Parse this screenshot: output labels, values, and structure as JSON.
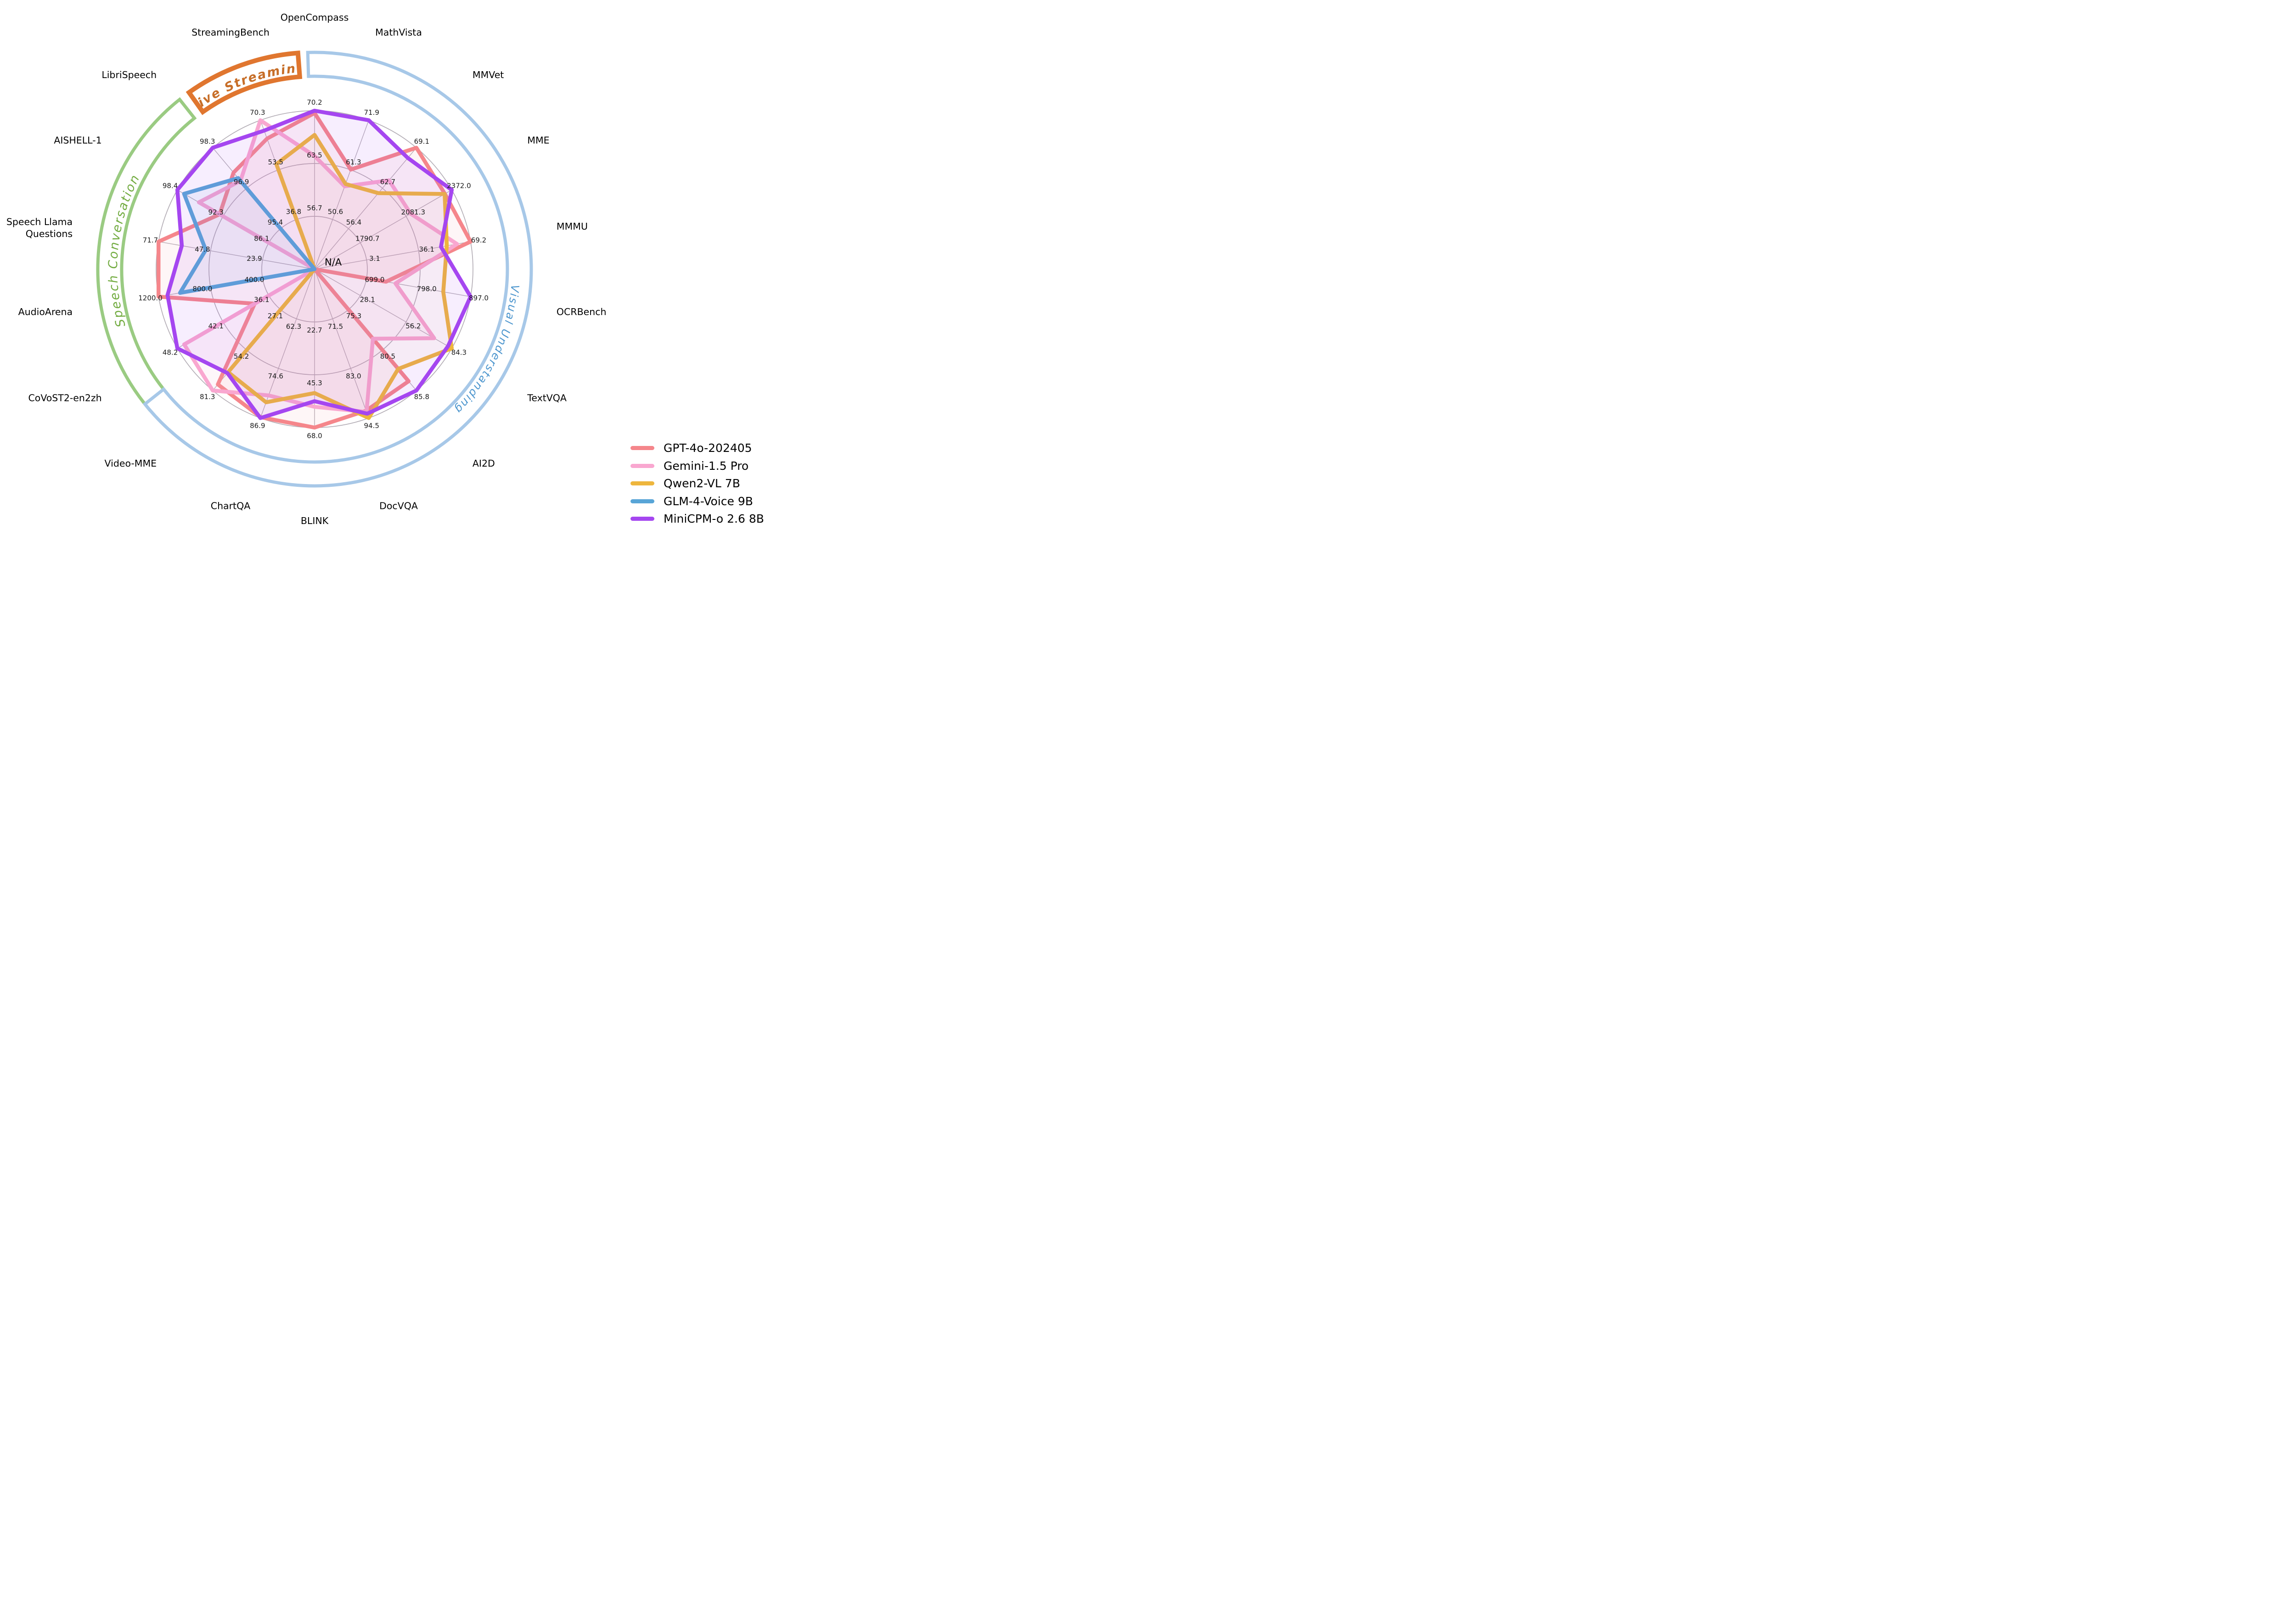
{
  "chart_data": {
    "type": "radar",
    "title": "",
    "center_label": "N/A",
    "rings": [
      0.3333,
      0.6667,
      1.0
    ],
    "grid_color": "#b3adb5",
    "axes": [
      {
        "label": "OpenCompass",
        "lines": [
          "OpenCompass"
        ],
        "angle_deg": 90,
        "ticks": [
          "56.7",
          "63.5",
          "70.2"
        ],
        "min": 49.9,
        "max": 70.2
      },
      {
        "label": "MathVista",
        "lines": [
          "MathVista"
        ],
        "angle_deg": 70,
        "ticks": [
          "50.6",
          "61.3",
          "71.9"
        ],
        "min": 39.9,
        "max": 71.9
      },
      {
        "label": "MMVet",
        "lines": [
          "MMVet"
        ],
        "angle_deg": 50,
        "ticks": [
          "56.4",
          "62.7",
          "69.1"
        ],
        "min": 50.1,
        "max": 69.1
      },
      {
        "label": "MME",
        "lines": [
          "MME"
        ],
        "angle_deg": 30,
        "ticks": [
          "1790.7",
          "2081.3",
          "2372.0"
        ],
        "min": 1500.1,
        "max": 2372.0
      },
      {
        "label": "MMMU",
        "lines": [
          "MMMU"
        ],
        "angle_deg": 10,
        "ticks": [
          "3.1",
          "36.1",
          "69.2"
        ],
        "min": -29.9,
        "max": 69.2
      },
      {
        "label": "OCRBench",
        "lines": [
          "OCRBench"
        ],
        "angle_deg": -10,
        "ticks": [
          "699.0",
          "798.0",
          "897.0"
        ],
        "min": 600.0,
        "max": 897.0
      },
      {
        "label": "TextVQA",
        "lines": [
          "TextVQA"
        ],
        "angle_deg": -30,
        "ticks": [
          "28.1",
          "56.2",
          "84.3"
        ],
        "min": 0.0,
        "max": 84.3
      },
      {
        "label": "AI2D",
        "lines": [
          "AI2D"
        ],
        "angle_deg": -50,
        "ticks": [
          "75.3",
          "80.5",
          "85.8"
        ],
        "min": 70.1,
        "max": 85.8
      },
      {
        "label": "DocVQA",
        "lines": [
          "DocVQA"
        ],
        "angle_deg": -70,
        "ticks": [
          "71.5",
          "83.0",
          "94.5"
        ],
        "min": 60.0,
        "max": 94.5
      },
      {
        "label": "BLINK",
        "lines": [
          "BLINK"
        ],
        "angle_deg": -90,
        "ticks": [
          "22.7",
          "45.3",
          "68.0"
        ],
        "min": 0.1,
        "max": 68.0
      },
      {
        "label": "ChartQA",
        "lines": [
          "ChartQA"
        ],
        "angle_deg": -110,
        "ticks": [
          "62.3",
          "74.6",
          "86.9"
        ],
        "min": 50.0,
        "max": 86.9
      },
      {
        "label": "Video-MME",
        "lines": [
          "Video-MME"
        ],
        "angle_deg": -130,
        "ticks": [
          "27.1",
          "54.2",
          "81.3"
        ],
        "min": 0.0,
        "max": 81.3
      },
      {
        "label": "CoVoST2-en2zh",
        "lines": [
          "CoVoST2-en2zh"
        ],
        "angle_deg": -150,
        "ticks": [
          "36.1",
          "42.1",
          "48.2"
        ],
        "min": 30.1,
        "max": 48.2
      },
      {
        "label": "AudioArena",
        "lines": [
          "AudioArena"
        ],
        "angle_deg": -170,
        "ticks": [
          "400.0",
          "800.0",
          "1200.0"
        ],
        "min": 0.0,
        "max": 1200.0
      },
      {
        "label": "Speech Llama Questions",
        "lines": [
          "Speech Llama",
          "Questions"
        ],
        "angle_deg": 170,
        "ticks": [
          "23.9",
          "47.8",
          "71.7"
        ],
        "min": 0.0,
        "max": 71.7
      },
      {
        "label": "AISHELL-1",
        "lines": [
          "AISHELL-1"
        ],
        "angle_deg": 150,
        "ticks": [
          "86.1",
          "92.3",
          "98.4"
        ],
        "min": 79.9,
        "max": 98.4
      },
      {
        "label": "LibriSpeech",
        "lines": [
          "LibriSpeech"
        ],
        "angle_deg": 130,
        "ticks": [
          "95.4",
          "96.9",
          "98.3"
        ],
        "min": 93.9,
        "max": 98.3
      },
      {
        "label": "StreamingBench",
        "lines": [
          "StreamingBench"
        ],
        "angle_deg": 110,
        "ticks": [
          "36.8",
          "53.5",
          "70.3"
        ],
        "min": 20.1,
        "max": 70.3
      }
    ],
    "series": [
      {
        "name": "GPT-4o-202405",
        "color": "#F5868B",
        "fill_opacity": 0.07,
        "values": [
          69.9,
          61.3,
          69.1,
          2328.7,
          69.2,
          736.0,
          null,
          84.6,
          92.8,
          68.0,
          86.7,
          77.2,
          38.0,
          1200.0,
          71.7,
          92.7,
          97.4,
          64.1
        ]
      },
      {
        "name": "Gemini-1.5 Pro",
        "color": "#F9A7D0",
        "fill_opacity": 0.1,
        "values": [
          64.4,
          57.7,
          64.0,
          2110.6,
          60.6,
          754.0,
          73.5,
          79.1,
          93.1,
          59.1,
          81.3,
          81.3,
          47.3,
          null,
          null,
          95.5,
          97.1,
          70.3
        ]
      },
      {
        "name": "Qwen2-VL 7B",
        "color": "#EEB63D",
        "fill_opacity": 0.04,
        "values": [
          67.1,
          58.2,
          62.0,
          2326.8,
          54.1,
          845.0,
          84.3,
          83.0,
          94.5,
          53.2,
          83.0,
          69.0,
          null,
          null,
          null,
          null,
          null,
          55.5
        ]
      },
      {
        "name": "GLM-4-Voice 9B",
        "color": "#58A5D7",
        "fill_opacity": 0.08,
        "values": [
          null,
          null,
          null,
          null,
          null,
          null,
          null,
          null,
          null,
          null,
          null,
          null,
          null,
          1035.0,
          50.0,
          97.5,
          97.2,
          null
        ]
      },
      {
        "name": "MiniCPM-o 2.6 8B",
        "color": "#A546F0",
        "fill_opacity": 0.09,
        "values": [
          70.2,
          71.9,
          67.5,
          2372.0,
          50.4,
          897.0,
          82.0,
          85.8,
          93.5,
          56.7,
          86.9,
          69.6,
          48.2,
          1131.0,
          61.0,
          98.4,
          98.3,
          66.8
        ]
      }
    ],
    "category_bands": [
      {
        "label": "Live Streaming",
        "band_color": "#E0762F",
        "text_color": "#C76E28",
        "start_deg": 125.4,
        "end_deg": 94.4,
        "stroke_width": 10,
        "bold": true,
        "italic": true,
        "font_size": 27
      },
      {
        "label": "Speech Conversation",
        "band_color": "#9ACB82",
        "text_color": "#73AC42",
        "start_deg": 220.3,
        "end_deg": 128.5,
        "stroke_width": 7,
        "bold": false,
        "italic": true,
        "font_size": 27
      },
      {
        "label": "Visual Understanding",
        "band_color": "#A7C8E8",
        "text_color": "#4D96CE",
        "start_deg": 91.8,
        "end_deg": -141.5,
        "stroke_width": 7,
        "bold": false,
        "italic": true,
        "font_size": 24
      }
    ]
  },
  "legend": {
    "items": [
      {
        "label": "GPT-4o-202405",
        "color": "#F5868B"
      },
      {
        "label": "Gemini-1.5 Pro",
        "color": "#F9A7D0"
      },
      {
        "label": "Qwen2-VL 7B",
        "color": "#EEB63D"
      },
      {
        "label": "GLM-4-Voice 9B",
        "color": "#58A5D7"
      },
      {
        "label": "MiniCPM-o 2.6 8B",
        "color": "#A546F0"
      }
    ]
  }
}
